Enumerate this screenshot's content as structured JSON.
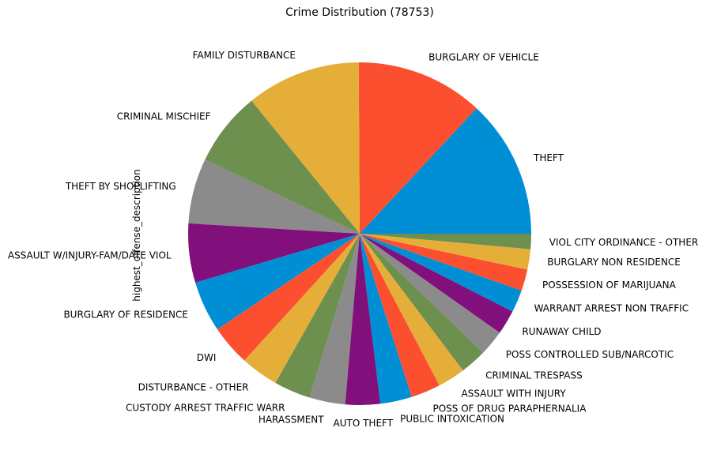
{
  "chart_data": {
    "type": "pie",
    "title": "Crime Distribution (78753)",
    "ylabel": "highest_offense_description",
    "start_angle_deg": 0,
    "direction": "counterclockwise",
    "colors": [
      "#008fd5",
      "#fc4f30",
      "#e5ae38",
      "#6d904f",
      "#8b8b8b",
      "#810f7c"
    ],
    "slices": [
      {
        "label": "THEFT",
        "value": 13.6
      },
      {
        "label": "BURGLARY OF VEHICLE",
        "value": 12.5
      },
      {
        "label": "FAMILY DISTURBANCE",
        "value": 11.2
      },
      {
        "label": "CRIMINAL MISCHIEF",
        "value": 7.3
      },
      {
        "label": "THEFT BY SHOPLIFTING",
        "value": 6.4
      },
      {
        "label": "ASSAULT W/INJURY-FAM/DATE VIOL",
        "value": 5.8
      },
      {
        "label": "BURGLARY OF RESIDENCE",
        "value": 5.0
      },
      {
        "label": "DWI",
        "value": 4.0
      },
      {
        "label": "DISTURBANCE - OTHER",
        "value": 3.7
      },
      {
        "label": "CUSTODY ARREST TRAFFIC WARR",
        "value": 3.6
      },
      {
        "label": "HARASSMENT",
        "value": 3.5
      },
      {
        "label": "AUTO THEFT",
        "value": 3.4
      },
      {
        "label": "PUBLIC INTOXICATION",
        "value": 3.1
      },
      {
        "label": "POSS OF DRUG PARAPHERNALIA",
        "value": 2.9
      },
      {
        "label": "ASSAULT WITH INJURY",
        "value": 2.7
      },
      {
        "label": "CRIMINAL TRESPASS",
        "value": 2.6
      },
      {
        "label": "POSS CONTROLLED SUB/NARCOTIC",
        "value": 2.5
      },
      {
        "label": "RUNAWAY CHILD",
        "value": 2.4
      },
      {
        "label": "WARRANT ARREST NON TRAFFIC",
        "value": 2.2
      },
      {
        "label": "POSSESSION OF MARIJUANA",
        "value": 2.1
      },
      {
        "label": "BURGLARY NON RESIDENCE",
        "value": 2.0
      },
      {
        "label": "VIOL CITY ORDINANCE - OTHER",
        "value": 1.5
      }
    ]
  }
}
